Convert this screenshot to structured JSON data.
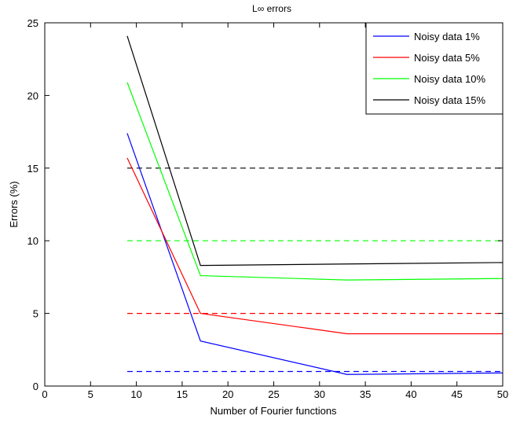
{
  "chart_data": {
    "type": "line",
    "title": "L∞ errors",
    "xlabel": "Number of Fourier functions",
    "ylabel": "Errors (%)",
    "xlim": [
      0,
      50
    ],
    "ylim": [
      0,
      25
    ],
    "xticks": [
      0,
      5,
      10,
      15,
      20,
      25,
      30,
      35,
      40,
      45,
      50
    ],
    "yticks": [
      0,
      5,
      10,
      15,
      20,
      25
    ],
    "legend_position": "top-right",
    "grid": false,
    "series": [
      {
        "name": "Noisy data 1%",
        "color": "#0000ff",
        "style": "solid",
        "x": [
          9,
          17,
          33,
          50
        ],
        "y": [
          17.4,
          3.1,
          0.8,
          0.9
        ]
      },
      {
        "name": "Noisy data 5%",
        "color": "#ff0000",
        "style": "solid",
        "x": [
          9,
          17,
          33,
          50
        ],
        "y": [
          15.7,
          5.0,
          3.6,
          3.6
        ]
      },
      {
        "name": "Noisy data 10%",
        "color": "#00ff00",
        "style": "solid",
        "x": [
          9,
          17,
          33,
          50
        ],
        "y": [
          20.9,
          7.6,
          7.3,
          7.4
        ]
      },
      {
        "name": "Noisy data 15%",
        "color": "#000000",
        "style": "solid",
        "x": [
          9,
          17,
          33,
          50
        ],
        "y": [
          24.1,
          8.3,
          8.4,
          8.5
        ]
      }
    ],
    "reference_lines": [
      {
        "y": 1,
        "color": "#0000ff",
        "style": "dashed",
        "x": [
          9,
          50
        ]
      },
      {
        "y": 5,
        "color": "#ff0000",
        "style": "dashed",
        "x": [
          9,
          50
        ]
      },
      {
        "y": 10,
        "color": "#00ff00",
        "style": "dashed",
        "x": [
          9,
          50
        ]
      },
      {
        "y": 15,
        "color": "#000000",
        "style": "dashed",
        "x": [
          9,
          50
        ]
      }
    ]
  }
}
